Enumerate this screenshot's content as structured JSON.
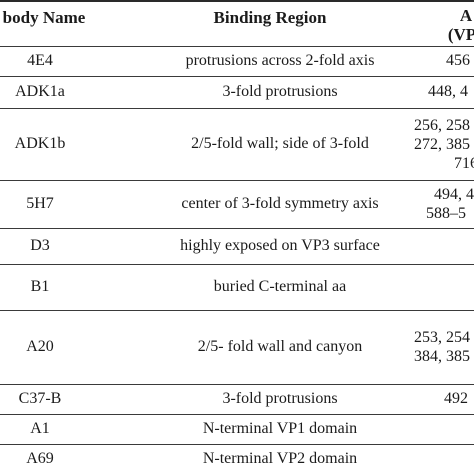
{
  "table": {
    "headers": {
      "name": "body Name",
      "region": "Binding Region",
      "vp_line1": "A",
      "vp_line2": "(VP"
    },
    "rows": [
      {
        "name": "4E4",
        "region": "protrusions across 2-fold axis",
        "aa": [
          "456"
        ]
      },
      {
        "name": "ADK1a",
        "region": "3-fold protrusions",
        "aa": [
          "448, 4"
        ]
      },
      {
        "name": "ADK1b",
        "region": "2/5-fold wall; side of 3-fold",
        "aa": [
          "256, 258",
          "272, 385",
          "716"
        ]
      },
      {
        "name": "5H7",
        "region": "center of 3-fold symmetry axis",
        "aa": [
          "494, 4",
          "588–5"
        ]
      },
      {
        "name": "D3",
        "region": "highly exposed on VP3 surface",
        "aa": []
      },
      {
        "name": "B1",
        "region": "buried C-terminal aa",
        "aa": []
      },
      {
        "name": "A20",
        "region": "2/5- fold wall and canyon",
        "aa": [
          "253, 254",
          "384, 385"
        ]
      },
      {
        "name": "C37-B",
        "region": "3-fold protrusions",
        "aa": [
          "492"
        ]
      },
      {
        "name": "A1",
        "region": "N-terminal VP1 domain",
        "aa": []
      },
      {
        "name": "A69",
        "region": "N-terminal VP2 domain",
        "aa": []
      }
    ]
  }
}
